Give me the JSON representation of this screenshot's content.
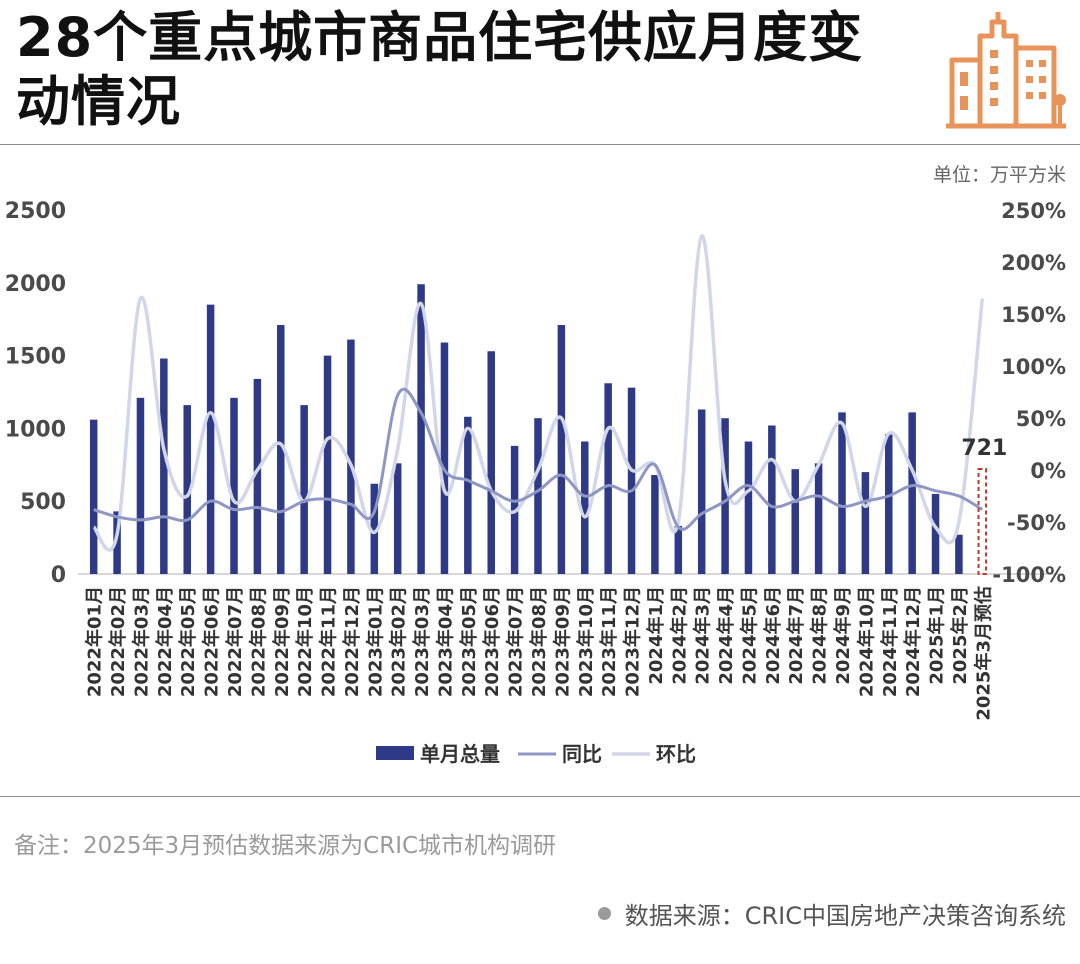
{
  "title": "28个重点城市商品住宅供应月度变动情况",
  "unit": "单位：万平方米",
  "note": "备注：2025年3月预估数据来源为CRIC城市机构调研",
  "source": "数据来源：CRIC中国房地产决策咨询系统",
  "colors": {
    "bar": "#2e3a87",
    "yoy_line": "#8e96c4",
    "mom_line": "#d3d6e8",
    "forecast": "#c0392b",
    "logo": "#e8935a"
  },
  "chart_data": {
    "type": "bar",
    "categories": [
      "2022年01月",
      "2022年02月",
      "2022年03月",
      "2022年04月",
      "2022年05月",
      "2022年06月",
      "2022年07月",
      "2022年08月",
      "2022年09月",
      "2022年10月",
      "2022年11月",
      "2022年12月",
      "2023年01月",
      "2023年02月",
      "2023年03月",
      "2023年04月",
      "2023年05月",
      "2023年06月",
      "2023年07月",
      "2023年08月",
      "2023年09月",
      "2023年10月",
      "2023年11月",
      "2023年12月",
      "2024年1月",
      "2024年2月",
      "2024年3月",
      "2024年4月",
      "2024年5月",
      "2024年6月",
      "2024年7月",
      "2024年8月",
      "2024年9月",
      "2024年10月",
      "2024年11月",
      "2024年12月",
      "2025年1月",
      "2025年2月",
      "2025年3月预估"
    ],
    "series": [
      {
        "name": "单月总量",
        "type": "bar",
        "axis": "left",
        "values": [
          1060,
          430,
          1210,
          1480,
          1160,
          1850,
          1210,
          1340,
          1710,
          1160,
          1500,
          1610,
          620,
          760,
          1990,
          1590,
          1080,
          1530,
          880,
          1070,
          1710,
          910,
          1310,
          1280,
          680,
          330,
          1130,
          1070,
          910,
          1020,
          720,
          760,
          1110,
          700,
          960,
          1110,
          550,
          270,
          721
        ]
      },
      {
        "name": "同比",
        "type": "line",
        "axis": "right",
        "values": [
          -38,
          -45,
          -48,
          -45,
          -48,
          -30,
          -38,
          -36,
          -40,
          -30,
          -28,
          -33,
          -40,
          72,
          55,
          0,
          -10,
          -20,
          -30,
          -20,
          -5,
          -25,
          -15,
          -20,
          5,
          -55,
          -42,
          -30,
          -15,
          -35,
          -30,
          -25,
          -35,
          -30,
          -25,
          -15,
          -20,
          -25,
          -38
        ]
      },
      {
        "name": "环比",
        "type": "line",
        "axis": "right",
        "values": [
          -55,
          -62,
          165,
          20,
          -25,
          55,
          -30,
          0,
          25,
          -30,
          30,
          5,
          -60,
          20,
          160,
          -20,
          40,
          -20,
          -40,
          0,
          50,
          -45,
          40,
          0,
          5,
          -50,
          225,
          -10,
          -20,
          10,
          -30,
          5,
          45,
          -35,
          35,
          0,
          -55,
          -50,
          165
        ]
      }
    ],
    "ylim_left": [
      0,
      2500
    ],
    "yticks_left": [
      0,
      500,
      1000,
      1500,
      2000,
      2500
    ],
    "ylim_right": [
      -100,
      250
    ],
    "yticks_right": [
      "-100%",
      "-50%",
      "0%",
      "50%",
      "100%",
      "150%",
      "200%",
      "250%"
    ],
    "forecast_label": "721",
    "legend_position": "bottom-center"
  }
}
